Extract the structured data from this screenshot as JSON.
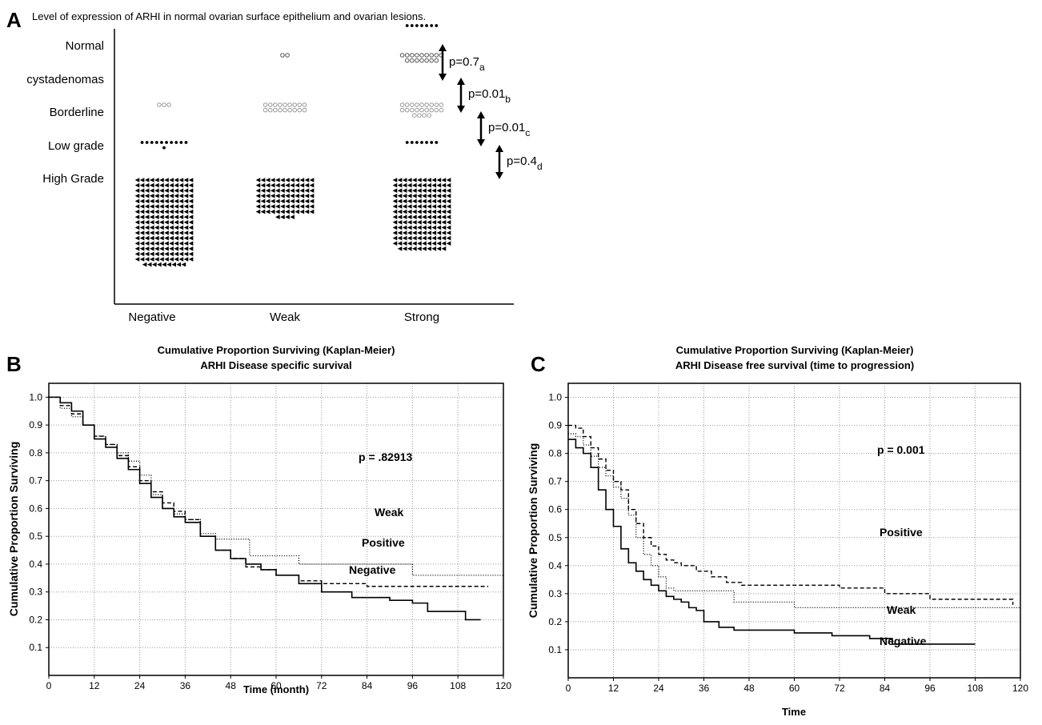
{
  "panel_letters": {
    "a": "A",
    "b": "B",
    "c": "C"
  },
  "chart_data": [
    {
      "type": "scatter",
      "title": "Level of expression of ARHI in normal ovarian surface epithelium and ovarian lesions.",
      "categories": [
        "Negative",
        "Weak",
        "Strong"
      ],
      "row_labels": [
        "Normal",
        "cystadenomas",
        "Borderline",
        "Low grade",
        "High Grade"
      ],
      "counts": [
        {
          "row": "Normal",
          "marker": "filled-dot",
          "values": [
            0,
            0,
            7
          ]
        },
        {
          "row": "cystadenomas",
          "marker": "open-diamond",
          "values": [
            0,
            2,
            16
          ]
        },
        {
          "row": "Borderline",
          "marker": "open-circle",
          "values": [
            3,
            18,
            22
          ]
        },
        {
          "row": "Low grade",
          "marker": "filled-dot",
          "values": [
            11,
            0,
            7
          ]
        },
        {
          "row": "High Grade",
          "marker": "filled-triangle",
          "values": [
            201,
            88,
            166
          ]
        }
      ],
      "annotations": [
        {
          "text": "p=0.7",
          "sub": "a"
        },
        {
          "text": "p=0.01",
          "sub": "b"
        },
        {
          "text": "p=0.01",
          "sub": "c"
        },
        {
          "text": "p=0.4",
          "sub": "d"
        }
      ],
      "grid": false
    },
    {
      "type": "line",
      "title": "Cumulative Proportion Surviving (Kaplan-Meier)",
      "subtitle": "ARHI Disease specific survival",
      "xlabel": "Time (month)",
      "ylabel": "Cumulative Proportion Surviving",
      "xlim": [
        0,
        120
      ],
      "ylim": [
        0,
        1.05
      ],
      "xticks": [
        "0",
        "12",
        "24",
        "36",
        "48",
        "60",
        "72",
        "84",
        "96",
        "108",
        "120"
      ],
      "yticks": [
        "0.1",
        "0.2",
        "0.3",
        "0.4",
        "0.5",
        "0.6",
        "0.7",
        "0.8",
        "0.9",
        "1.0"
      ],
      "grid": true,
      "annotation": "p = .82913",
      "series": [
        {
          "name": "Weak",
          "style": "dotted",
          "x": [
            0,
            3,
            6,
            9,
            12,
            15,
            18,
            21,
            24,
            27,
            30,
            33,
            36,
            40,
            44,
            48,
            53,
            57,
            60,
            66,
            72,
            84,
            96,
            98,
            120
          ],
          "y": [
            1.0,
            0.96,
            0.93,
            0.9,
            0.86,
            0.83,
            0.8,
            0.77,
            0.72,
            0.65,
            0.6,
            0.58,
            0.56,
            0.51,
            0.49,
            0.49,
            0.43,
            0.43,
            0.43,
            0.4,
            0.4,
            0.4,
            0.36,
            0.36,
            0.36
          ]
        },
        {
          "name": "Positive",
          "style": "dashed",
          "x": [
            0,
            3,
            6,
            9,
            12,
            15,
            18,
            21,
            24,
            27,
            30,
            33,
            36,
            40,
            44,
            48,
            52,
            56,
            60,
            66,
            72,
            84,
            96,
            108,
            116
          ],
          "y": [
            1.0,
            0.97,
            0.94,
            0.9,
            0.86,
            0.83,
            0.79,
            0.75,
            0.7,
            0.66,
            0.62,
            0.59,
            0.56,
            0.5,
            0.45,
            0.42,
            0.39,
            0.38,
            0.36,
            0.34,
            0.33,
            0.32,
            0.32,
            0.32,
            0.32
          ]
        },
        {
          "name": "Negative",
          "style": "solid",
          "x": [
            0,
            3,
            6,
            9,
            12,
            15,
            18,
            21,
            24,
            27,
            30,
            33,
            36,
            40,
            44,
            48,
            52,
            56,
            60,
            66,
            72,
            80,
            90,
            96,
            100,
            108,
            110,
            114
          ],
          "y": [
            1.0,
            0.98,
            0.95,
            0.9,
            0.85,
            0.82,
            0.78,
            0.74,
            0.69,
            0.64,
            0.6,
            0.57,
            0.55,
            0.5,
            0.45,
            0.42,
            0.4,
            0.38,
            0.36,
            0.33,
            0.3,
            0.28,
            0.27,
            0.26,
            0.23,
            0.23,
            0.2,
            0.2
          ]
        }
      ]
    },
    {
      "type": "line",
      "title": "Cumulative Proportion Surviving (Kaplan-Meier)",
      "subtitle": "ARHI Disease free survival (time to progression)",
      "xlabel": "Time",
      "ylabel": "Cumulative Proportion Surviving",
      "xlim": [
        0,
        120
      ],
      "ylim": [
        0,
        1.05
      ],
      "xticks": [
        "0",
        "12",
        "24",
        "36",
        "48",
        "60",
        "72",
        "84",
        "96",
        "108",
        "120"
      ],
      "yticks": [
        "0.1",
        "0.2",
        "0.3",
        "0.4",
        "0.5",
        "0.6",
        "0.7",
        "0.8",
        "0.9",
        "1.0"
      ],
      "grid": true,
      "annotation": "p = 0.001",
      "series": [
        {
          "name": "Positive",
          "style": "dashed",
          "x": [
            0,
            2,
            4,
            6,
            8,
            10,
            12,
            14,
            16,
            18,
            20,
            22,
            24,
            26,
            28,
            30,
            34,
            38,
            42,
            46,
            50,
            60,
            72,
            84,
            96,
            108,
            118
          ],
          "y": [
            0.9,
            0.89,
            0.86,
            0.82,
            0.78,
            0.74,
            0.7,
            0.67,
            0.6,
            0.55,
            0.5,
            0.47,
            0.44,
            0.42,
            0.41,
            0.4,
            0.38,
            0.36,
            0.34,
            0.33,
            0.33,
            0.33,
            0.32,
            0.3,
            0.28,
            0.28,
            0.26
          ]
        },
        {
          "name": "Weak",
          "style": "dotted",
          "x": [
            0,
            2,
            4,
            6,
            8,
            10,
            12,
            14,
            16,
            18,
            20,
            22,
            24,
            26,
            28,
            30,
            36,
            42,
            44,
            50,
            54,
            58,
            60,
            72,
            84,
            96,
            108,
            120
          ],
          "y": [
            0.87,
            0.86,
            0.83,
            0.79,
            0.75,
            0.72,
            0.68,
            0.64,
            0.58,
            0.5,
            0.44,
            0.4,
            0.36,
            0.32,
            0.31,
            0.31,
            0.31,
            0.31,
            0.27,
            0.27,
            0.27,
            0.27,
            0.25,
            0.25,
            0.25,
            0.25,
            0.25,
            0.25
          ]
        },
        {
          "name": "Negative",
          "style": "solid",
          "x": [
            0,
            2,
            4,
            6,
            8,
            10,
            12,
            14,
            16,
            18,
            20,
            22,
            24,
            26,
            28,
            30,
            32,
            34,
            36,
            40,
            44,
            50,
            56,
            60,
            70,
            80,
            86,
            96,
            108
          ],
          "y": [
            0.85,
            0.82,
            0.8,
            0.75,
            0.67,
            0.6,
            0.54,
            0.46,
            0.41,
            0.38,
            0.35,
            0.33,
            0.31,
            0.29,
            0.28,
            0.27,
            0.25,
            0.24,
            0.2,
            0.18,
            0.17,
            0.17,
            0.17,
            0.16,
            0.15,
            0.14,
            0.12,
            0.12,
            0.12
          ]
        }
      ]
    }
  ]
}
